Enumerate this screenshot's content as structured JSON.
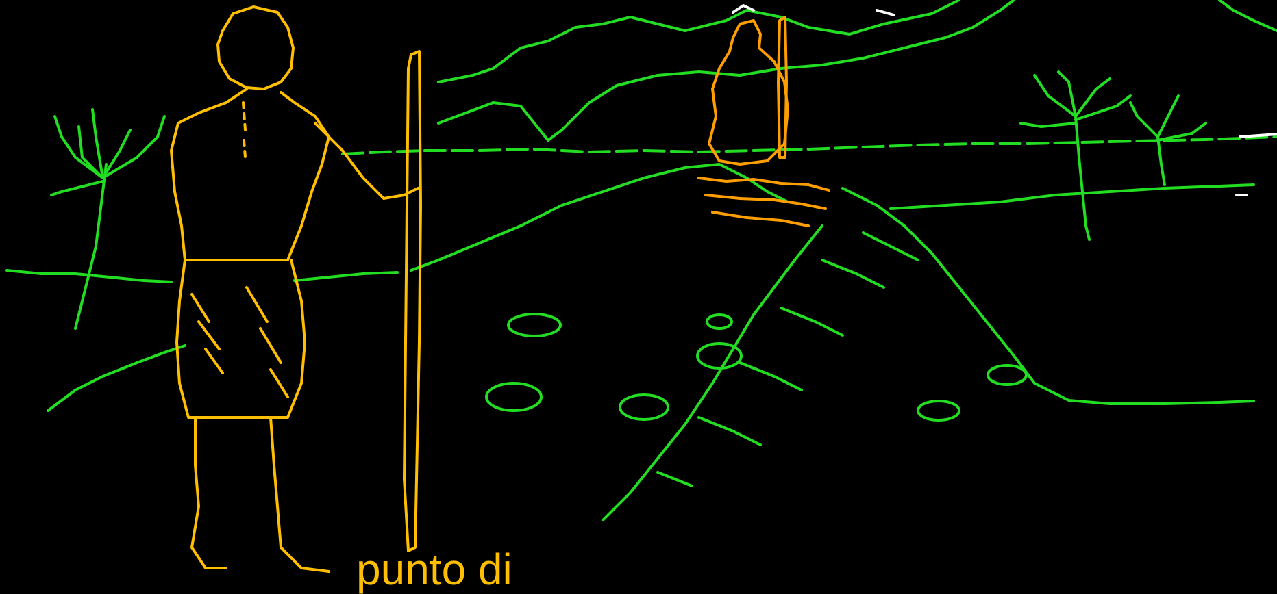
{
  "caption": {
    "text": "punto di"
  },
  "colors": {
    "background": "#000000",
    "landscape": "#22dd22",
    "figure_foreground": "#ffbf00",
    "figure_distant": "#ff9e00",
    "caption_text": "#ffbf00",
    "highlight": "#ffffff"
  }
}
